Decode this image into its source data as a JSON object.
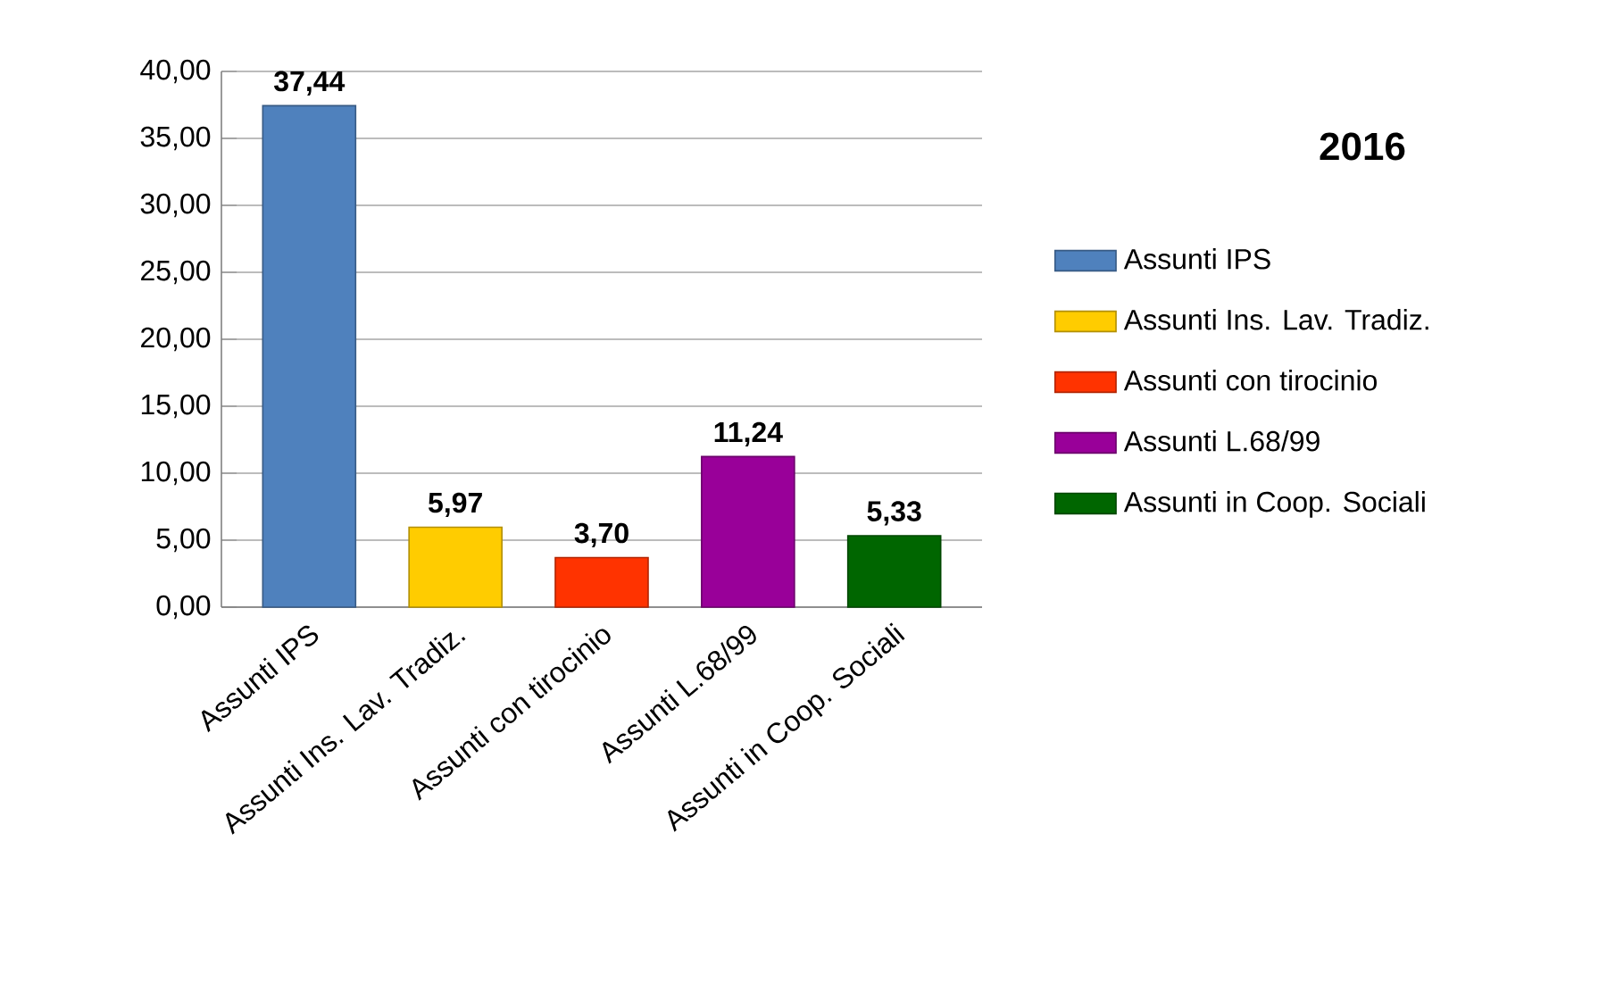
{
  "chart_data": {
    "type": "bar",
    "legend_title": "2016",
    "categories": [
      "Assunti IPS",
      "Assunti Ins. Lav. Tradiz.",
      "Assunti con tirocinio",
      "Assunti L.68/99",
      "Assunti in Coop. Sociali"
    ],
    "series": [
      {
        "name": "Assunti IPS",
        "color": "#4f81bd",
        "values": [
          37.44,
          null,
          null,
          null,
          null
        ],
        "value_labels": [
          "37,44",
          null,
          null,
          null,
          null
        ]
      },
      {
        "name": "Assunti Ins. Lav. Tradiz.",
        "color": "#ffcc00",
        "values": [
          null,
          5.97,
          null,
          null,
          null
        ],
        "value_labels": [
          null,
          "5,97",
          null,
          null,
          null
        ]
      },
      {
        "name": "Assunti con tirocinio",
        "color": "#ff3300",
        "values": [
          null,
          null,
          3.7,
          null,
          null
        ],
        "value_labels": [
          null,
          null,
          "3,70",
          null,
          null
        ]
      },
      {
        "name": "Assunti L.68/99",
        "color": "#990099",
        "values": [
          null,
          null,
          null,
          11.24,
          null
        ],
        "value_labels": [
          null,
          null,
          null,
          "11,24",
          null
        ]
      },
      {
        "name": "Assunti in Coop. Sociali",
        "color": "#006600",
        "values": [
          null,
          null,
          null,
          null,
          5.33
        ],
        "value_labels": [
          null,
          null,
          null,
          null,
          "5,33"
        ]
      }
    ],
    "ylim": [
      0,
      40
    ],
    "yticks": [
      {
        "value": 0,
        "label": "0,00"
      },
      {
        "value": 5,
        "label": "5,00"
      },
      {
        "value": 10,
        "label": "10,00"
      },
      {
        "value": 15,
        "label": "15,00"
      },
      {
        "value": 20,
        "label": "20,00"
      },
      {
        "value": 25,
        "label": "25,00"
      },
      {
        "value": 30,
        "label": "30,00"
      },
      {
        "value": 35,
        "label": "35,00"
      },
      {
        "value": 40,
        "label": "40,00"
      }
    ],
    "grid": "y",
    "legend": "right"
  }
}
